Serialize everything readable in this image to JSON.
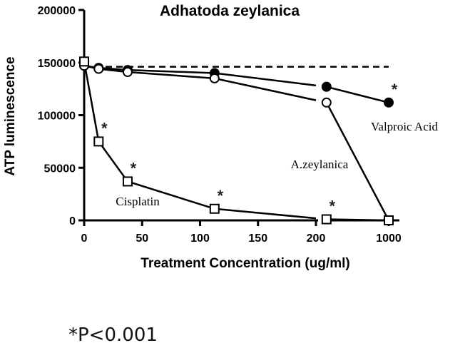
{
  "chart_data": {
    "type": "line",
    "title": "Adhatoda zeylanica",
    "xlabel": "Treatment Concentration (ug/ml)",
    "ylabel": "ATP luminescence",
    "ylim": [
      0,
      200000
    ],
    "y_ticks": [
      0,
      50000,
      100000,
      150000,
      200000
    ],
    "y_tick_labels": [
      "0",
      "50000",
      "100000",
      "150000",
      "200000"
    ],
    "x_ticks": [
      0,
      50,
      100,
      150,
      200,
      1000
    ],
    "x_tick_labels": [
      "0",
      "50",
      "100",
      "150",
      "200",
      "1000"
    ],
    "x_axis_break": "between 200 and 1000",
    "baseline_dashed": 146000,
    "series": [
      {
        "name": "Valproic Acid",
        "marker": "filled-circle",
        "x": [
          0,
          12.5,
          37.5,
          112.5,
          225,
          1000
        ],
        "y": [
          147000,
          145000,
          143000,
          140000,
          127000,
          112000
        ],
        "significant": [
          false,
          false,
          false,
          false,
          false,
          true
        ]
      },
      {
        "name": "A.zeylanica",
        "marker": "open-circle",
        "x": [
          0,
          12.5,
          37.5,
          112.5,
          225,
          1000
        ],
        "y": [
          147000,
          144000,
          141000,
          135000,
          112000,
          0
        ],
        "significant": [
          false,
          false,
          false,
          false,
          false,
          false
        ]
      },
      {
        "name": "Cisplatin",
        "marker": "open-square",
        "x": [
          0,
          12.5,
          37.5,
          112.5,
          225,
          1000
        ],
        "y": [
          151000,
          75000,
          37000,
          11000,
          1000,
          0
        ],
        "significant": [
          false,
          true,
          true,
          true,
          true,
          false
        ]
      }
    ],
    "significance_mark": "*",
    "footnote": "*P<0.001"
  }
}
